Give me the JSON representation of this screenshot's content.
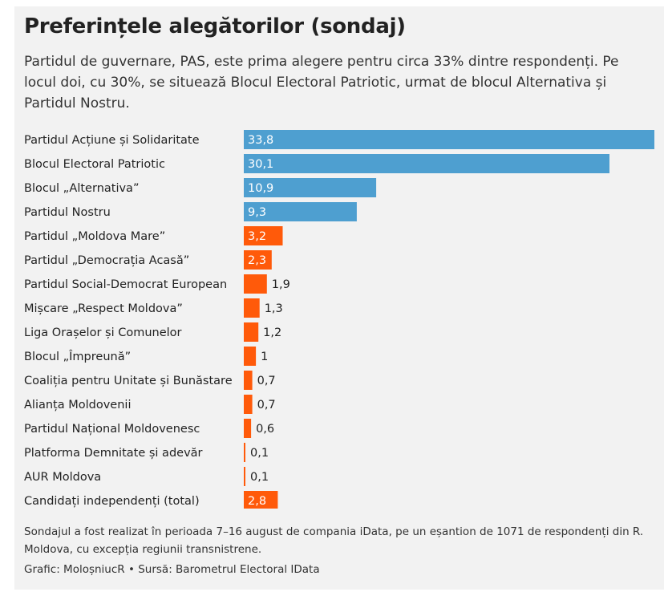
{
  "title": "Preferințele alegătorilor (sondaj)",
  "subtitle": "Partidul de guvernare, PAS, este prima alegere pentru circa 33% dintre respondenți. Pe locul doi, cu 30%, se situează Blocul Electoral Patriotic, urmat de blocul Alternativa și Partidul Nostru.",
  "note": "Sondajul a fost realizat în perioada 7–16 august de compania iData, pe un eșantion de 1071 de respondenți din R. Moldova, cu excepția regiunii transnistrene.",
  "credit": "Grafic: MoloșniucR • Sursă: Barometrul Electoral IData",
  "colors": {
    "blue": "#4e9fd0",
    "orange": "#ff5a0a",
    "background": "#f2f2f2"
  },
  "chart_data": {
    "type": "bar",
    "orientation": "horizontal",
    "title": "Preferințele alegătorilor (sondaj)",
    "xlim": [
      0,
      33.8
    ],
    "grid": false,
    "categories": [
      "Partidul Acțiune și Solidaritate",
      "Blocul Electoral Patriotic",
      "Blocul „Alternativa”",
      "Partidul Nostru",
      "Partidul „Moldova Mare”",
      "Partidul „Democrația Acasă”",
      "Partidul Social-Democrat European",
      "Mișcare „Respect Moldova”",
      "Liga Orașelor și Comunelor",
      "Blocul „Împreună”",
      "Coaliția pentru Unitate și Bunăstare",
      "Alianța Moldovenii",
      "Partidul Național Moldovenesc",
      "Platforma Demnitate și adevăr",
      "AUR Moldova",
      "Candidați independenți (total)"
    ],
    "values": [
      33.8,
      30.1,
      10.9,
      9.3,
      3.2,
      2.3,
      1.9,
      1.3,
      1.2,
      1,
      0.7,
      0.7,
      0.6,
      0.1,
      0.1,
      2.8
    ],
    "labels": [
      "33,8",
      "30,1",
      "10,9",
      "9,3",
      "3,2",
      "2,3",
      "1,9",
      "1,3",
      "1,2",
      "1",
      "0,7",
      "0,7",
      "0,6",
      "0,1",
      "0,1",
      "2,8"
    ],
    "bar_colors": [
      "blue",
      "blue",
      "blue",
      "blue",
      "orange",
      "orange",
      "orange",
      "orange",
      "orange",
      "orange",
      "orange",
      "orange",
      "orange",
      "orange",
      "orange",
      "orange"
    ]
  }
}
